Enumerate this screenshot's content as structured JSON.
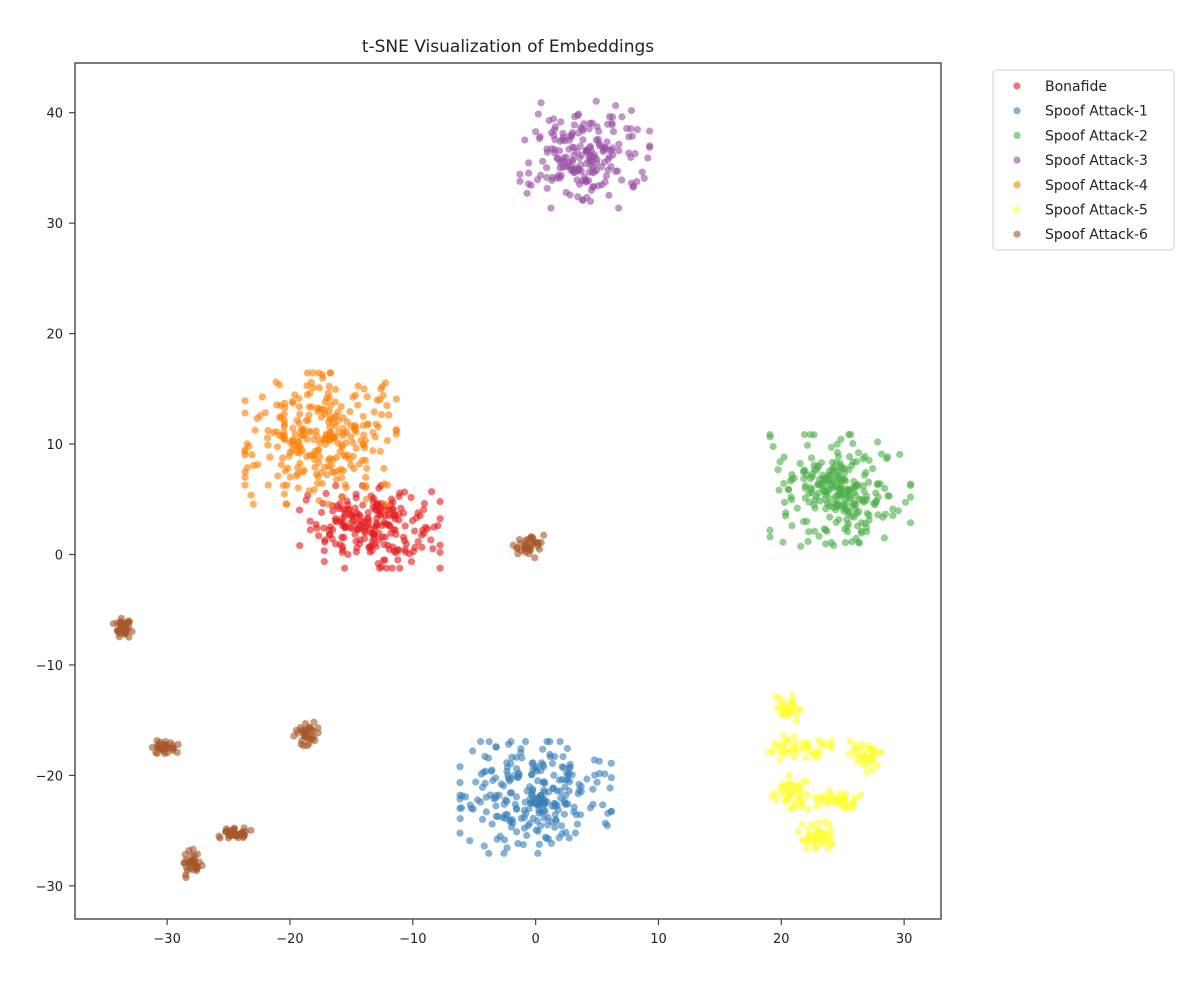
{
  "chart_data": {
    "type": "scatter",
    "title": "t-SNE Visualization of Embeddings",
    "xlabel": "",
    "ylabel": "",
    "xlim": [
      -37.5,
      33
    ],
    "ylim": [
      -33,
      44.5
    ],
    "xticks": [
      -30,
      -20,
      -10,
      0,
      10,
      20,
      30
    ],
    "yticks": [
      -30,
      -20,
      -10,
      0,
      10,
      20,
      30,
      40
    ],
    "xtick_labels": [
      "−30",
      "−20",
      "−10",
      "0",
      "10",
      "20",
      "30"
    ],
    "ytick_labels": [
      "−30",
      "−20",
      "−10",
      "0",
      "10",
      "20",
      "30",
      "40"
    ],
    "grid": false,
    "legend_position": "outside-top-right",
    "marker_alpha": 0.6,
    "series": [
      {
        "name": "Bonafide",
        "color": "#e41a1c",
        "clusters": [
          {
            "cx": -13.5,
            "cy": 2.5,
            "sx": 2.6,
            "sy": 1.7,
            "n": 220
          }
        ]
      },
      {
        "name": "Spoof Attack-1",
        "color": "#377eb8",
        "clusters": [
          {
            "cx": 0.0,
            "cy": -22.0,
            "sx": 2.8,
            "sy": 2.3,
            "n": 260
          }
        ]
      },
      {
        "name": "Spoof Attack-2",
        "color": "#4daf4a",
        "clusters": [
          {
            "cx": 24.8,
            "cy": 5.8,
            "sx": 2.6,
            "sy": 2.3,
            "n": 260
          }
        ]
      },
      {
        "name": "Spoof Attack-3",
        "color": "#984ea3",
        "clusters": [
          {
            "cx": 4.0,
            "cy": 36.2,
            "sx": 2.4,
            "sy": 2.2,
            "n": 200
          }
        ]
      },
      {
        "name": "Spoof Attack-4",
        "color": "#ff7f00",
        "clusters": [
          {
            "cx": -17.5,
            "cy": 10.5,
            "sx": 2.8,
            "sy": 2.7,
            "n": 280
          }
        ]
      },
      {
        "name": "Spoof Attack-5",
        "color": "#ffff33",
        "clusters": [
          {
            "cx": 20.5,
            "cy": -13.8,
            "sx": 0.6,
            "sy": 0.6,
            "n": 30
          },
          {
            "cx": 21.2,
            "cy": -17.5,
            "sx": 1.3,
            "sy": 0.5,
            "n": 45
          },
          {
            "cx": 20.8,
            "cy": -21.5,
            "sx": 0.7,
            "sy": 0.7,
            "n": 45
          },
          {
            "cx": 24.5,
            "cy": -22.2,
            "sx": 0.9,
            "sy": 0.5,
            "n": 40
          },
          {
            "cx": 26.8,
            "cy": -18.2,
            "sx": 0.6,
            "sy": 0.7,
            "n": 40
          },
          {
            "cx": 23.0,
            "cy": -25.5,
            "sx": 0.8,
            "sy": 0.6,
            "n": 45
          }
        ]
      },
      {
        "name": "Spoof Attack-6",
        "color": "#a65628",
        "clusters": [
          {
            "cx": -0.5,
            "cy": 0.8,
            "sx": 0.6,
            "sy": 0.5,
            "n": 35
          },
          {
            "cx": -33.5,
            "cy": -6.6,
            "sx": 0.4,
            "sy": 0.4,
            "n": 35
          },
          {
            "cx": -30.2,
            "cy": -17.4,
            "sx": 0.5,
            "sy": 0.3,
            "n": 35
          },
          {
            "cx": -18.8,
            "cy": -16.2,
            "sx": 0.5,
            "sy": 0.5,
            "n": 35
          },
          {
            "cx": -24.5,
            "cy": -25.2,
            "sx": 0.6,
            "sy": 0.3,
            "n": 35
          },
          {
            "cx": -28.0,
            "cy": -28.0,
            "sx": 0.4,
            "sy": 0.6,
            "n": 35
          }
        ]
      }
    ]
  }
}
